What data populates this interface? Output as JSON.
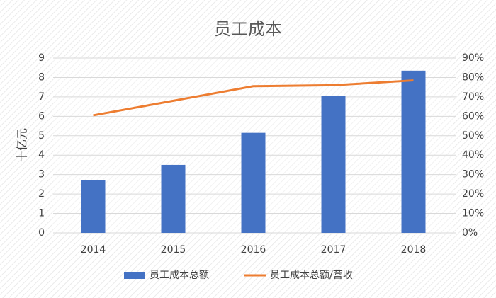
{
  "chart_data": {
    "type": "bar",
    "title": "员工成本",
    "y_label": "十亿元",
    "categories": [
      "2014",
      "2015",
      "2016",
      "2017",
      "2018"
    ],
    "series": [
      {
        "name": "员工成本总额",
        "type": "bar",
        "color": "#4472c4",
        "values": [
          2.7,
          3.5,
          5.15,
          7.05,
          8.35
        ]
      },
      {
        "name": "员工成本总额/营收",
        "type": "line",
        "axis": "y2",
        "color": "#ed7d31",
        "values": [
          60.5,
          68,
          75.5,
          76,
          78.5
        ]
      }
    ],
    "ylim": [
      0,
      9
    ],
    "yticks": [
      0,
      1,
      2,
      3,
      4,
      5,
      6,
      7,
      8,
      9
    ],
    "y2lim": [
      0,
      90
    ],
    "y2ticks": [
      {
        "value": 0,
        "label": "0%"
      },
      {
        "value": 10,
        "label": "10%"
      },
      {
        "value": 20,
        "label": "20%"
      },
      {
        "value": 30,
        "label": "30%"
      },
      {
        "value": 40,
        "label": "40%"
      },
      {
        "value": 50,
        "label": "50%"
      },
      {
        "value": 60,
        "label": "60%"
      },
      {
        "value": 70,
        "label": "70%"
      },
      {
        "value": 80,
        "label": "80%"
      },
      {
        "value": 90,
        "label": "90%"
      }
    ],
    "grid": true,
    "legend": "bottom"
  }
}
